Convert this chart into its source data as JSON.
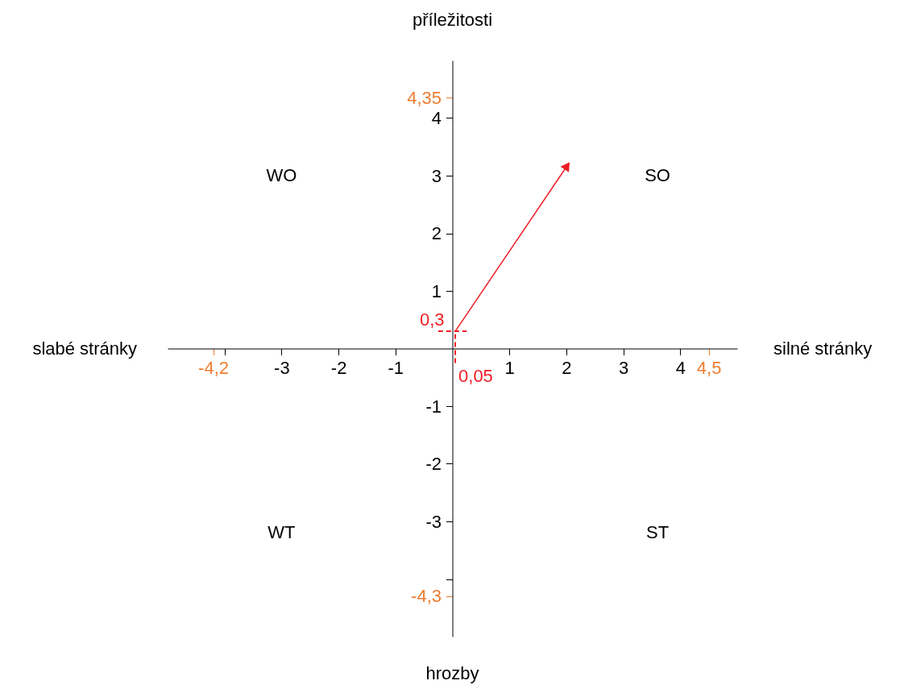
{
  "chart_data": {
    "type": "line",
    "xlabel": "silné stránky",
    "ylabel": "příležitosti",
    "xlim": [
      -5,
      5
    ],
    "ylim": [
      -5,
      5
    ],
    "xticks": [
      {
        "value": -4.2,
        "label": "-4,2"
      },
      {
        "value": -4,
        "label": null
      },
      -3,
      -2,
      -1,
      1,
      2,
      3,
      4,
      {
        "value": 4.5,
        "label": "4,5"
      }
    ],
    "yticks": [
      {
        "value": 4.35,
        "label": "4,35"
      },
      4,
      3,
      2,
      1,
      -1,
      -2,
      -3,
      {
        "value": -4,
        "label": null
      },
      {
        "value": -4.3,
        "label": "-4,3"
      }
    ],
    "series": [
      {
        "color": "#ee1c25",
        "x": [
          0.05,
          2
        ],
        "values": [
          0.3,
          3.15
        ]
      }
    ],
    "ref_lines": [
      {
        "axis": "x",
        "value": 0.05,
        "label": "0,05",
        "color": "#ee1c25",
        "line_style": "dashed"
      },
      {
        "axis": "y",
        "value": 0.3,
        "label": "0,3",
        "color": "#ee1c25",
        "line_style": "dashed"
      }
    ],
    "annotations": [
      "slabé stránky",
      "hrozby",
      "WO",
      "SO",
      "WT",
      "ST"
    ],
    "grid": false,
    "line_style": "solid"
  }
}
